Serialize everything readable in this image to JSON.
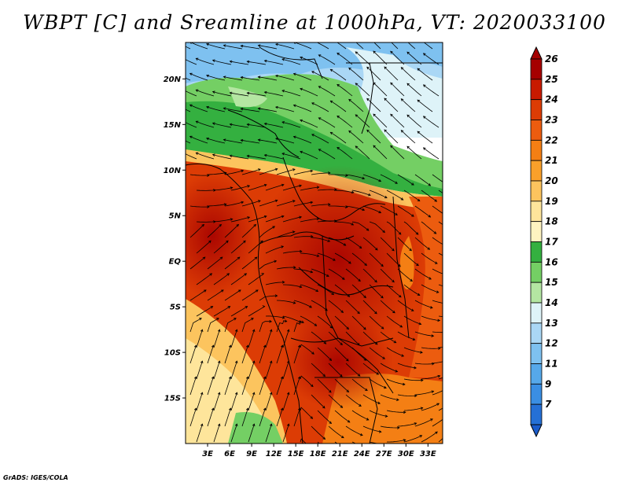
{
  "title": "WBPT [C] and Sreamline at 1000hPa, VT: 2020033100",
  "credit": "GrADS: IGES/COLA",
  "map": {
    "lon_range": [
      0,
      35
    ],
    "lat_range": [
      -20,
      24
    ],
    "lat_ticks": [
      {
        "value": 20,
        "label": "20N"
      },
      {
        "value": 15,
        "label": "15N"
      },
      {
        "value": 10,
        "label": "10N"
      },
      {
        "value": 5,
        "label": "5N"
      },
      {
        "value": 0,
        "label": "EQ"
      },
      {
        "value": -5,
        "label": "5S"
      },
      {
        "value": -10,
        "label": "10S"
      },
      {
        "value": -15,
        "label": "15S"
      }
    ],
    "lon_ticks": [
      {
        "value": 3,
        "label": "3E"
      },
      {
        "value": 6,
        "label": "6E"
      },
      {
        "value": 9,
        "label": "9E"
      },
      {
        "value": 12,
        "label": "12E"
      },
      {
        "value": 15,
        "label": "15E"
      },
      {
        "value": 18,
        "label": "18E"
      },
      {
        "value": 21,
        "label": "21E"
      },
      {
        "value": 24,
        "label": "24E"
      },
      {
        "value": 27,
        "label": "27E"
      },
      {
        "value": 30,
        "label": "30E"
      },
      {
        "value": 33,
        "label": "33E"
      }
    ]
  },
  "colorbar": {
    "levels": [
      {
        "label": "26",
        "color": "#a50000"
      },
      {
        "label": "25",
        "color": "#c81a00"
      },
      {
        "label": "24",
        "color": "#dc3c05"
      },
      {
        "label": "23",
        "color": "#ec5c0f"
      },
      {
        "label": "22",
        "color": "#f47f14"
      },
      {
        "label": "21",
        "color": "#faa02a"
      },
      {
        "label": "20",
        "color": "#fcc45e"
      },
      {
        "label": "19",
        "color": "#fee59b"
      },
      {
        "label": "18",
        "color": "#fef3c0"
      },
      {
        "label": "17",
        "color": "#34b040"
      },
      {
        "label": "16",
        "color": "#74cf64"
      },
      {
        "label": "15",
        "color": "#b4e6a2"
      },
      {
        "label": "14",
        "color": "#def3f8"
      },
      {
        "label": "13",
        "color": "#aad7f5"
      },
      {
        "label": "12",
        "color": "#7ec1f0"
      },
      {
        "label": "11",
        "color": "#56a8ea"
      },
      {
        "label": "9",
        "color": "#3a8ee3"
      },
      {
        "label": "7",
        "color": "#2570d6"
      }
    ],
    "below_color": "#1b5ccb"
  }
}
